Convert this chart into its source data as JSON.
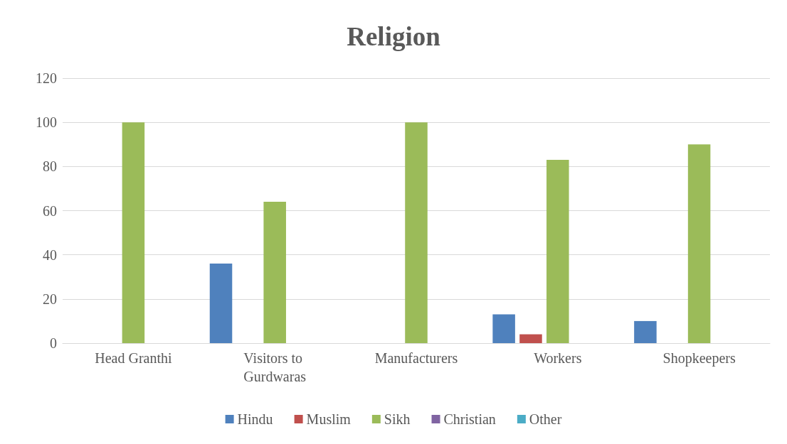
{
  "chart_data": {
    "type": "bar",
    "title": "Religion",
    "categories": [
      "Head Granthi",
      "Visitors to Gurdwaras",
      "Manufacturers",
      "Workers",
      "Shopkeepers"
    ],
    "series": [
      {
        "name": "Hindu",
        "color": "#4f81bd",
        "values": [
          null,
          36,
          null,
          13,
          10
        ]
      },
      {
        "name": "Muslim",
        "color": "#c0504d",
        "values": [
          null,
          null,
          null,
          4,
          null
        ]
      },
      {
        "name": "Sikh",
        "color": "#9bbb59",
        "values": [
          100,
          64,
          100,
          83,
          90
        ]
      },
      {
        "name": "Christian",
        "color": "#8064a2",
        "values": [
          null,
          null,
          null,
          null,
          null
        ]
      },
      {
        "name": "Other",
        "color": "#4bacc6",
        "values": [
          null,
          null,
          null,
          null,
          null
        ]
      }
    ],
    "ylim": [
      0,
      120
    ],
    "yticks": [
      0,
      20,
      40,
      60,
      80,
      100,
      120
    ],
    "grid": "y",
    "legend": "bottom"
  }
}
